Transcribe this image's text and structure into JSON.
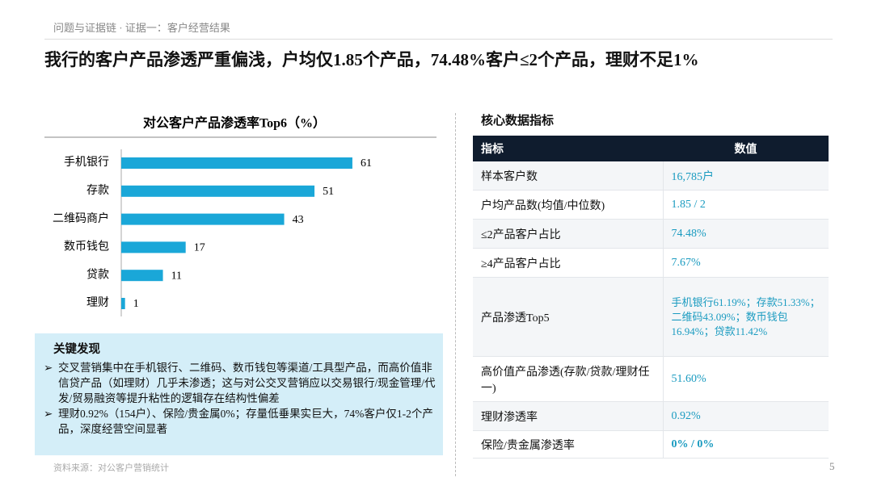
{
  "header": {
    "breadcrumb": "问题与证据链 · 证据一：客户经营结果",
    "title": "我行的客户产品渗透严重偏浅，户均仅1.85个产品，74.48%客户≤2个产品，理财不足1%"
  },
  "chart_data": {
    "type": "bar",
    "orientation": "horizontal",
    "title": "对公客户产品渗透率Top6（%）",
    "categories": [
      "手机银行",
      "存款",
      "二维码商户",
      "数币钱包",
      "贷款",
      "理财"
    ],
    "values": [
      61,
      51,
      43,
      17,
      11,
      1
    ],
    "color": "#1aa7d8",
    "xlim": [
      0,
      80
    ]
  },
  "findings": {
    "title": "关键发现",
    "items": [
      "交叉营销集中在手机银行、二维码、数币钱包等渠道/工具型产品，而高价值非信贷产品（如理财）几乎未渗透；这与对公交叉营销应以交易银行/现金管理/代发/贸易融资等提升粘性的逻辑存在结构性偏差",
      "理财0.92%（154户）、保险/贵金属0%；存量低垂果实巨大，74%客户仅1-2个产品，深度经营空间显著"
    ]
  },
  "table": {
    "title": "核心数据指标",
    "columns": [
      "指标",
      "数值"
    ],
    "rows": [
      [
        "样本客户数",
        "16,785户"
      ],
      [
        "户均产品数(均值/中位数)",
        "1.85 / 2"
      ],
      [
        "≤2产品客户占比",
        "74.48%"
      ],
      [
        "≥4产品客户占比",
        "7.67%"
      ],
      [
        "产品渗透Top5",
        "手机银行61.19%；存款51.33%；二维码43.09%；数币钱包16.94%；贷款11.42%"
      ],
      [
        "高价值产品渗透(存款/贷款/理财任一)",
        "51.60%"
      ],
      [
        "理财渗透率",
        "0.92%"
      ],
      [
        "保险/贵金属渗透率",
        "0% / 0%"
      ]
    ]
  },
  "footer": {
    "source": "资料来源：对公客户营销统计",
    "page": "5"
  }
}
